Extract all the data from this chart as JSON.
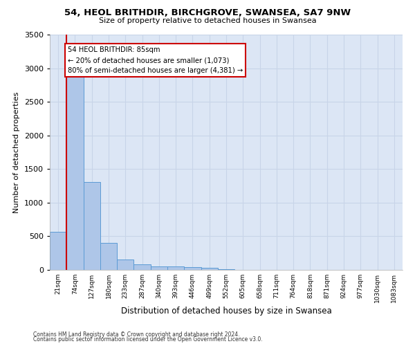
{
  "title_line1": "54, HEOL BRITHDIR, BIRCHGROVE, SWANSEA, SA7 9NW",
  "title_line2": "Size of property relative to detached houses in Swansea",
  "xlabel": "Distribution of detached houses by size in Swansea",
  "ylabel": "Number of detached properties",
  "bin_labels": [
    "21sqm",
    "74sqm",
    "127sqm",
    "180sqm",
    "233sqm",
    "287sqm",
    "340sqm",
    "393sqm",
    "446sqm",
    "499sqm",
    "552sqm",
    "605sqm",
    "658sqm",
    "711sqm",
    "764sqm",
    "818sqm",
    "871sqm",
    "924sqm",
    "977sqm",
    "1030sqm",
    "1083sqm"
  ],
  "bar_values": [
    570,
    2910,
    1305,
    400,
    150,
    80,
    55,
    50,
    45,
    35,
    8,
    3,
    2,
    1,
    1,
    0,
    0,
    0,
    0,
    0,
    0
  ],
  "bar_color": "#aec6e8",
  "bar_edge_color": "#5b9bd5",
  "grid_color": "#c8d4e8",
  "plot_bg_color": "#dce6f5",
  "figure_bg_color": "#ffffff",
  "property_line_color": "#cc0000",
  "annotation_text": "54 HEOL BRITHDIR: 85sqm\n← 20% of detached houses are smaller (1,073)\n80% of semi-detached houses are larger (4,381) →",
  "annotation_box_color": "#ffffff",
  "annotation_edge_color": "#cc0000",
  "ylim": [
    0,
    3500
  ],
  "footnote_line1": "Contains HM Land Registry data © Crown copyright and database right 2024.",
  "footnote_line2": "Contains public sector information licensed under the Open Government Licence v3.0."
}
